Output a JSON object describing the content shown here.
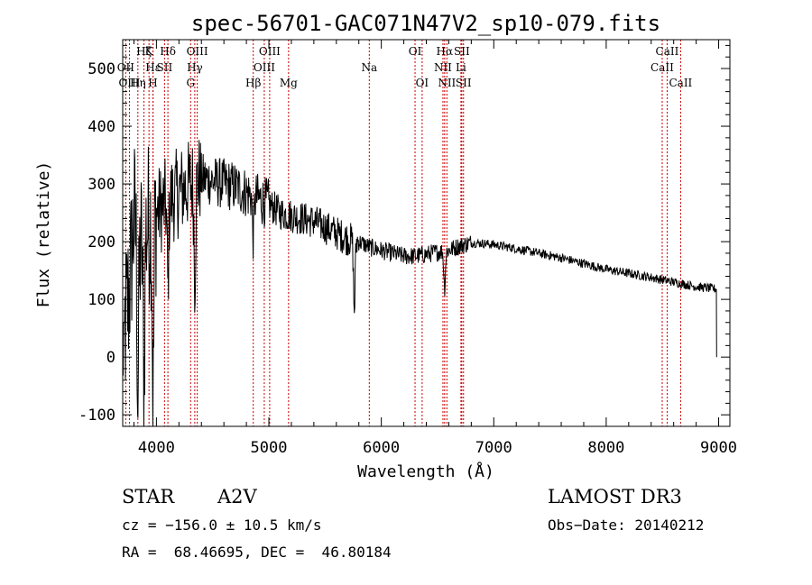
{
  "chart_data": {
    "type": "line",
    "title": "spec-56701-GAC071N47V2_sp10-079.fits",
    "xlabel": "Wavelength (Å)",
    "ylabel": "Flux (relative)",
    "xlim": [
      3700,
      9100
    ],
    "ylim": [
      -120,
      550
    ],
    "xticks": [
      4000,
      5000,
      6000,
      7000,
      8000,
      9000
    ],
    "yticks": [
      -100,
      0,
      100,
      200,
      300,
      400,
      500
    ],
    "line_color": "#000000",
    "marker_color": "#cc0000",
    "spectrum_anchors": [
      {
        "x": 3700,
        "y": 20
      },
      {
        "x": 3760,
        "y": 120
      },
      {
        "x": 3800,
        "y": 240
      },
      {
        "x": 3850,
        "y": 180
      },
      {
        "x": 3900,
        "y": 220
      },
      {
        "x": 3950,
        "y": 240
      },
      {
        "x": 4000,
        "y": 250
      },
      {
        "x": 4100,
        "y": 270
      },
      {
        "x": 4200,
        "y": 285
      },
      {
        "x": 4300,
        "y": 300
      },
      {
        "x": 4400,
        "y": 310
      },
      {
        "x": 4500,
        "y": 305
      },
      {
        "x": 4600,
        "y": 300
      },
      {
        "x": 4700,
        "y": 295
      },
      {
        "x": 4800,
        "y": 285
      },
      {
        "x": 4900,
        "y": 275
      },
      {
        "x": 5000,
        "y": 265
      },
      {
        "x": 5100,
        "y": 250
      },
      {
        "x": 5200,
        "y": 245
      },
      {
        "x": 5300,
        "y": 240
      },
      {
        "x": 5400,
        "y": 235
      },
      {
        "x": 5500,
        "y": 225
      },
      {
        "x": 5600,
        "y": 215
      },
      {
        "x": 5700,
        "y": 205
      },
      {
        "x": 5800,
        "y": 200
      },
      {
        "x": 5900,
        "y": 190
      },
      {
        "x": 6000,
        "y": 185
      },
      {
        "x": 6100,
        "y": 180
      },
      {
        "x": 6200,
        "y": 175
      },
      {
        "x": 6300,
        "y": 175
      },
      {
        "x": 6400,
        "y": 178
      },
      {
        "x": 6500,
        "y": 182
      },
      {
        "x": 6600,
        "y": 185
      },
      {
        "x": 6700,
        "y": 193
      },
      {
        "x": 6800,
        "y": 198
      },
      {
        "x": 6900,
        "y": 197
      },
      {
        "x": 7000,
        "y": 195
      },
      {
        "x": 7200,
        "y": 188
      },
      {
        "x": 7400,
        "y": 180
      },
      {
        "x": 7600,
        "y": 172
      },
      {
        "x": 7800,
        "y": 162
      },
      {
        "x": 8000,
        "y": 152
      },
      {
        "x": 8200,
        "y": 145
      },
      {
        "x": 8400,
        "y": 138
      },
      {
        "x": 8600,
        "y": 130
      },
      {
        "x": 8800,
        "y": 122
      },
      {
        "x": 8980,
        "y": 118
      }
    ],
    "absorption_dips": [
      {
        "x": 3835,
        "y": -70
      },
      {
        "x": 3889,
        "y": -50
      },
      {
        "x": 3970,
        "y": -75
      },
      {
        "x": 4102,
        "y": 120
      },
      {
        "x": 4341,
        "y": 140
      },
      {
        "x": 4861,
        "y": 210
      },
      {
        "x": 5760,
        "y": 80
      },
      {
        "x": 6563,
        "y": 120
      }
    ],
    "spectral_lines": [
      {
        "label": "Hδ",
        "x": 4102,
        "row": 0
      },
      {
        "label": "K",
        "x": 3934,
        "row": 0
      },
      {
        "label": "Hζ",
        "x": 3889,
        "row": 0
      },
      {
        "label": "OIII",
        "x": 4363,
        "row": 0
      },
      {
        "label": "OIII",
        "x": 5007,
        "row": 0
      },
      {
        "label": "OI",
        "x": 6300,
        "row": 0
      },
      {
        "label": "Hα",
        "x": 6563,
        "row": 0
      },
      {
        "label": "SII",
        "x": 6716,
        "row": 0
      },
      {
        "label": "CaII",
        "x": 8542,
        "row": 0
      },
      {
        "label": "OII",
        "x": 3727,
        "row": 1
      },
      {
        "label": "Hε",
        "x": 3970,
        "row": 1
      },
      {
        "label": "SII",
        "x": 4072,
        "row": 1
      },
      {
        "label": "Hγ",
        "x": 4341,
        "row": 1
      },
      {
        "label": "OIII",
        "x": 4959,
        "row": 1
      },
      {
        "label": "Na",
        "x": 5893,
        "row": 1
      },
      {
        "label": "NII",
        "x": 6548,
        "row": 1
      },
      {
        "label": "Li",
        "x": 6708,
        "row": 1
      },
      {
        "label": "CaII",
        "x": 8498,
        "row": 1
      },
      {
        "label": "OIII",
        "x": 3760,
        "row": 2
      },
      {
        "label": "Hη",
        "x": 3835,
        "row": 2
      },
      {
        "label": "H",
        "x": 3969,
        "row": 2
      },
      {
        "label": "G",
        "x": 4304,
        "row": 2
      },
      {
        "label": "Hβ",
        "x": 4861,
        "row": 2
      },
      {
        "label": "Mg",
        "x": 5175,
        "row": 2
      },
      {
        "label": "OI",
        "x": 6363,
        "row": 2
      },
      {
        "label": "NII",
        "x": 6583,
        "row": 2
      },
      {
        "label": "SII",
        "x": 6731,
        "row": 2
      },
      {
        "label": "CaII",
        "x": 8662,
        "row": 2
      }
    ]
  },
  "info": {
    "object_class": "STAR",
    "subclass": "A2V",
    "survey": "LAMOST DR3",
    "cz": "cz = −156.0 ± 10.5 km/s",
    "obs_date": "Obs−Date: 20140212",
    "coords": "RA =  68.46695, DEC =  46.80184"
  }
}
